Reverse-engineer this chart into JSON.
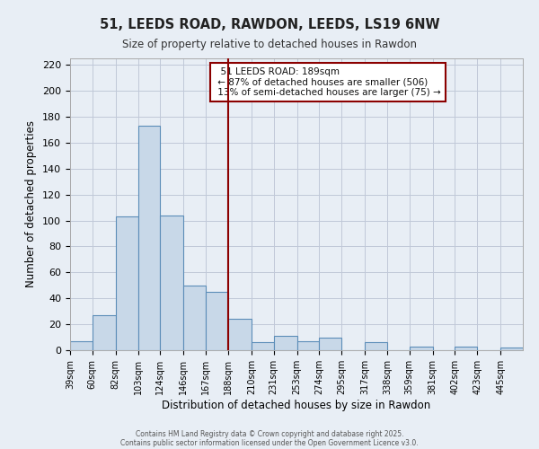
{
  "title": "51, LEEDS ROAD, RAWDON, LEEDS, LS19 6NW",
  "subtitle": "Size of property relative to detached houses in Rawdon",
  "xlabel": "Distribution of detached houses by size in Rawdon",
  "ylabel": "Number of detached properties",
  "bar_color": "#c8d8e8",
  "bar_edge_color": "#5b8db8",
  "background_color": "#e8eef5",
  "grid_color": "#c0c8d8",
  "vline_x": 188,
  "vline_color": "#8b0000",
  "bins": [
    39,
    60,
    82,
    103,
    124,
    146,
    167,
    188,
    210,
    231,
    253,
    274,
    295,
    317,
    338,
    359,
    381,
    402,
    423,
    445,
    466
  ],
  "counts": [
    7,
    27,
    103,
    173,
    104,
    50,
    45,
    24,
    6,
    11,
    7,
    10,
    0,
    6,
    0,
    3,
    0,
    3,
    0,
    2
  ],
  "ylim": [
    0,
    225
  ],
  "yticks": [
    0,
    20,
    40,
    60,
    80,
    100,
    120,
    140,
    160,
    180,
    200,
    220
  ],
  "annotation_title": "51 LEEDS ROAD: 189sqm",
  "annotation_line1": "← 87% of detached houses are smaller (506)",
  "annotation_line2": "13% of semi-detached houses are larger (75) →",
  "annotation_box_color": "#ffffff",
  "annotation_border_color": "#8b0000",
  "footer1": "Contains HM Land Registry data © Crown copyright and database right 2025.",
  "footer2": "Contains public sector information licensed under the Open Government Licence v3.0."
}
